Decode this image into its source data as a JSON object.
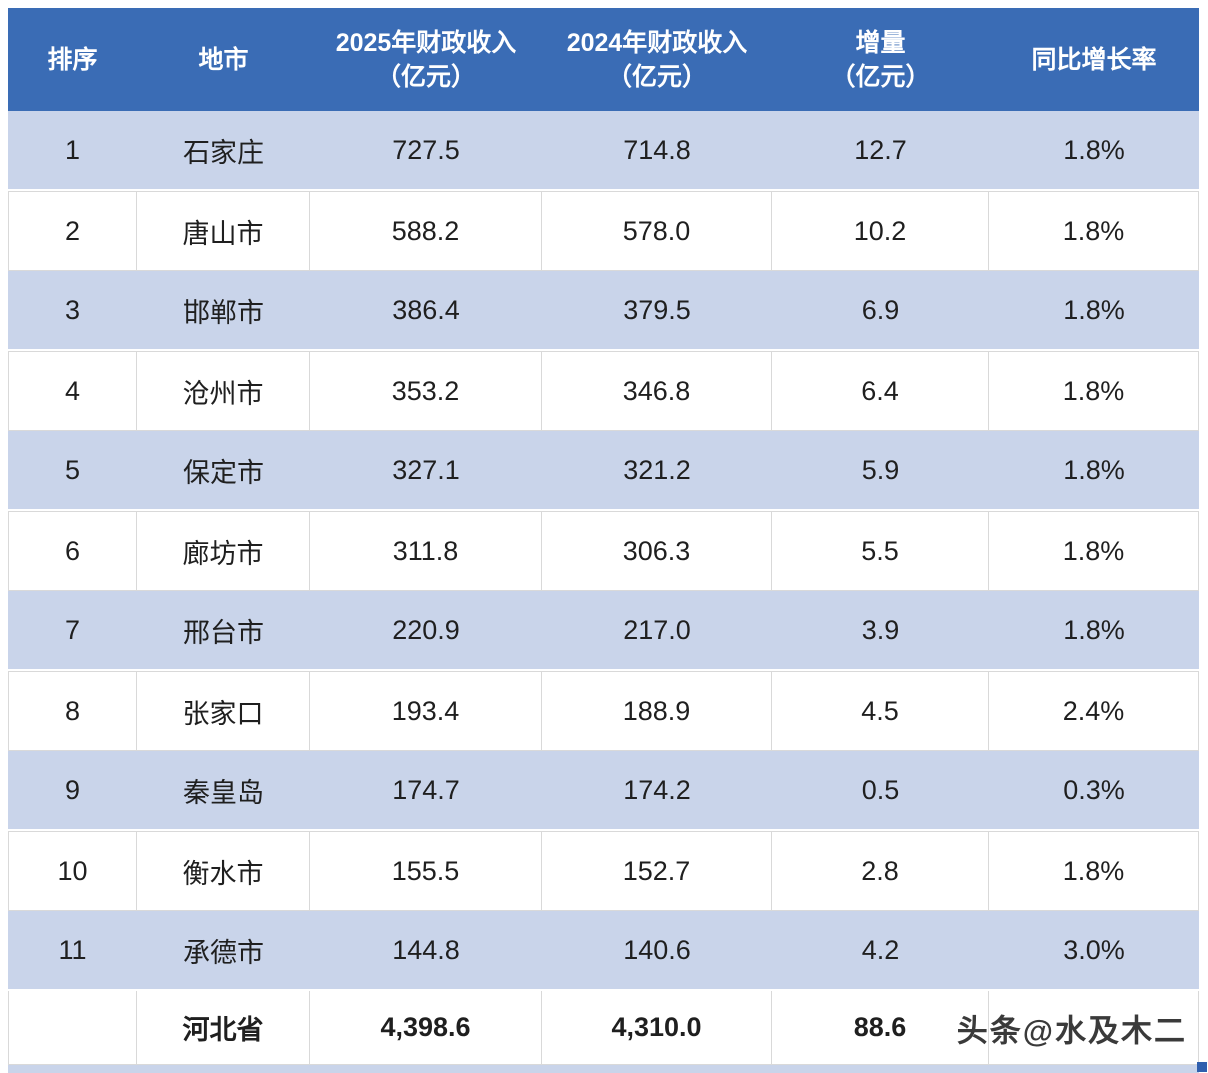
{
  "table": {
    "columns": [
      {
        "line1": "排序",
        "line2": ""
      },
      {
        "line1": "地市",
        "line2": ""
      },
      {
        "line1": "2025年财政收入",
        "line2": "（亿元）"
      },
      {
        "line1": "2024年财政收入",
        "line2": "（亿元）"
      },
      {
        "line1": "增量",
        "line2": "（亿元）"
      },
      {
        "line1": "同比增长率",
        "line2": ""
      }
    ],
    "rows": [
      {
        "rank": "1",
        "city": "石家庄",
        "r2025": "727.5",
        "r2024": "714.8",
        "delta": "12.7",
        "growth": "1.8%"
      },
      {
        "rank": "2",
        "city": "唐山市",
        "r2025": "588.2",
        "r2024": "578.0",
        "delta": "10.2",
        "growth": "1.8%"
      },
      {
        "rank": "3",
        "city": "邯郸市",
        "r2025": "386.4",
        "r2024": "379.5",
        "delta": "6.9",
        "growth": "1.8%"
      },
      {
        "rank": "4",
        "city": "沧州市",
        "r2025": "353.2",
        "r2024": "346.8",
        "delta": "6.4",
        "growth": "1.8%"
      },
      {
        "rank": "5",
        "city": "保定市",
        "r2025": "327.1",
        "r2024": "321.2",
        "delta": "5.9",
        "growth": "1.8%"
      },
      {
        "rank": "6",
        "city": "廊坊市",
        "r2025": "311.8",
        "r2024": "306.3",
        "delta": "5.5",
        "growth": "1.8%"
      },
      {
        "rank": "7",
        "city": "邢台市",
        "r2025": "220.9",
        "r2024": "217.0",
        "delta": "3.9",
        "growth": "1.8%"
      },
      {
        "rank": "8",
        "city": "张家口",
        "r2025": "193.4",
        "r2024": "188.9",
        "delta": "4.5",
        "growth": "2.4%"
      },
      {
        "rank": "9",
        "city": "秦皇岛",
        "r2025": "174.7",
        "r2024": "174.2",
        "delta": "0.5",
        "growth": "0.3%"
      },
      {
        "rank": "10",
        "city": "衡水市",
        "r2025": "155.5",
        "r2024": "152.7",
        "delta": "2.8",
        "growth": "1.8%"
      },
      {
        "rank": "11",
        "city": "承德市",
        "r2025": "144.8",
        "r2024": "140.6",
        "delta": "4.2",
        "growth": "3.0%"
      }
    ],
    "total": {
      "rank": "",
      "city": "河北省",
      "r2025": "4,398.6",
      "r2024": "4,310.0",
      "delta": "88.6",
      "growth": ""
    }
  },
  "watermark": "头条@水及木二",
  "colors": {
    "header_bg": "#3A6CB5",
    "header_text": "#FFFFFF",
    "band_bg": "#C9D4EA",
    "body_text": "#1F1F1F",
    "border": "#D9D9D9",
    "handle_blue": "#2F5FAE"
  },
  "chart_data": {
    "type": "table",
    "title": "",
    "columns": [
      "排序",
      "地市",
      "2025年财政收入（亿元）",
      "2024年财政收入（亿元）",
      "增量（亿元）",
      "同比增长率"
    ],
    "rows": [
      [
        "1",
        "石家庄",
        727.5,
        714.8,
        12.7,
        "1.8%"
      ],
      [
        "2",
        "唐山市",
        588.2,
        578.0,
        10.2,
        "1.8%"
      ],
      [
        "3",
        "邯郸市",
        386.4,
        379.5,
        6.9,
        "1.8%"
      ],
      [
        "4",
        "沧州市",
        353.2,
        346.8,
        6.4,
        "1.8%"
      ],
      [
        "5",
        "保定市",
        327.1,
        321.2,
        5.9,
        "1.8%"
      ],
      [
        "6",
        "廊坊市",
        311.8,
        306.3,
        5.5,
        "1.8%"
      ],
      [
        "7",
        "邢台市",
        220.9,
        217.0,
        3.9,
        "1.8%"
      ],
      [
        "8",
        "张家口",
        193.4,
        188.9,
        4.5,
        "2.4%"
      ],
      [
        "9",
        "秦皇岛",
        174.7,
        174.2,
        0.5,
        "0.3%"
      ],
      [
        "10",
        "衡水市",
        155.5,
        152.7,
        2.8,
        "1.8%"
      ],
      [
        "11",
        "承德市",
        144.8,
        140.6,
        4.2,
        "3.0%"
      ]
    ],
    "total_row": [
      "",
      "河北省",
      "4,398.6",
      "4,310.0",
      88.6,
      ""
    ],
    "layout": {
      "banded_rows": true,
      "header_position": "top",
      "grid": true
    }
  }
}
